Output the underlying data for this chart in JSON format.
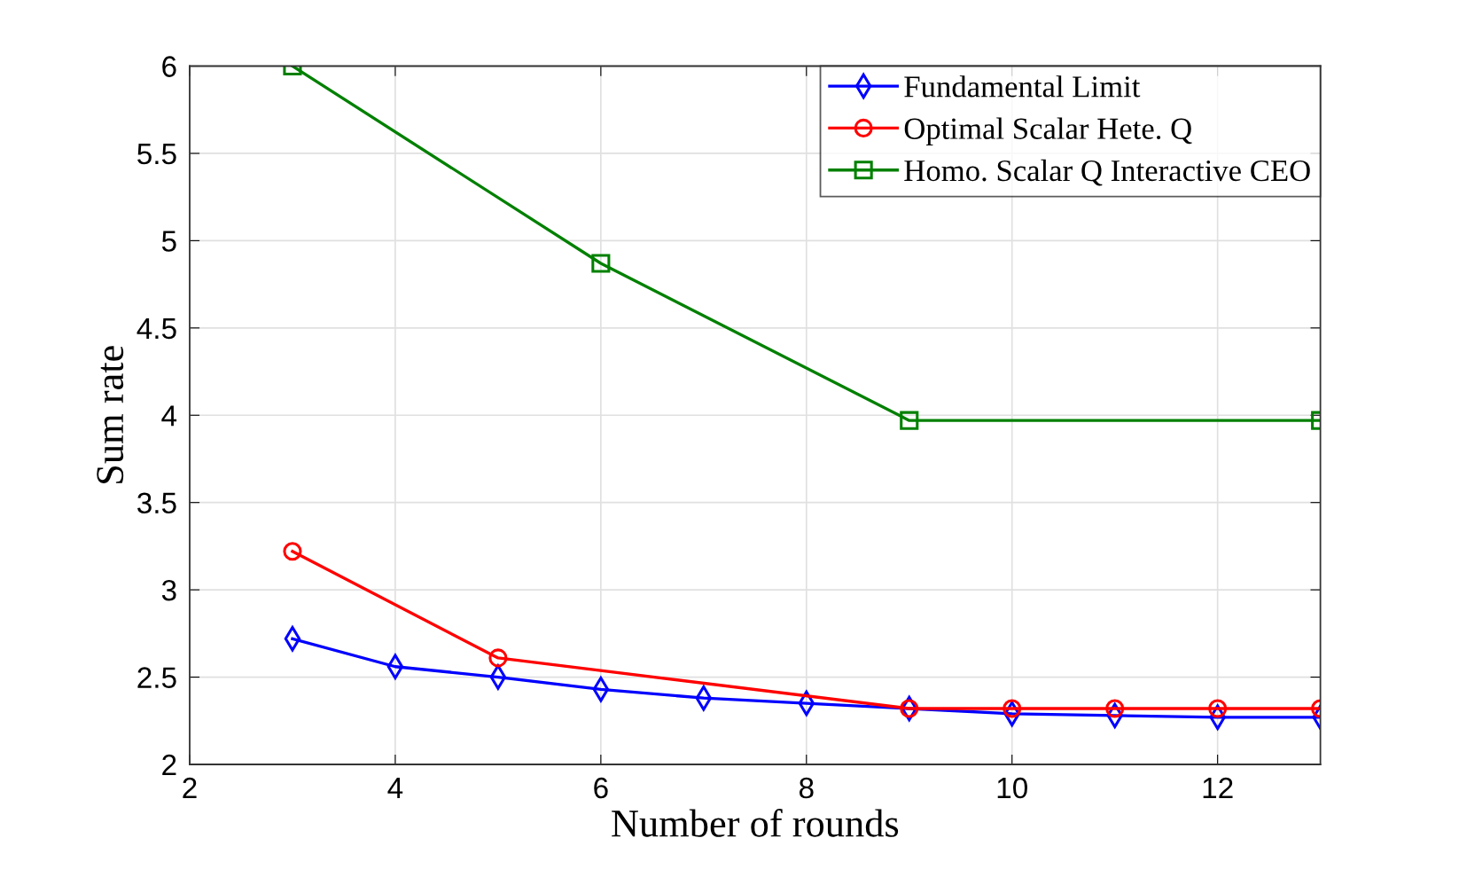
{
  "chart_data": {
    "type": "line",
    "xlabel": "Number of rounds",
    "ylabel": "Sum rate",
    "xlim": [
      2,
      13
    ],
    "xticks": [
      2,
      4,
      6,
      8,
      10,
      12
    ],
    "ylim": [
      2,
      6
    ],
    "yticks": [
      2,
      2.5,
      3,
      3.5,
      4,
      4.5,
      5,
      5.5,
      6
    ],
    "grid": true,
    "legend": "top right",
    "series": [
      {
        "name": "Fundamental Limit",
        "color": "#0000ff",
        "marker": "diamond",
        "x": [
          3,
          4,
          5,
          6,
          7,
          8,
          9,
          10,
          11,
          12,
          13
        ],
        "values": [
          2.72,
          2.56,
          2.5,
          2.43,
          2.38,
          2.35,
          2.32,
          2.29,
          2.28,
          2.27,
          2.27
        ]
      },
      {
        "name": "Optimal Scalar Hete. Q",
        "color": "#ff0000",
        "marker": "circle",
        "x": [
          3,
          5,
          9,
          10,
          11,
          12,
          13
        ],
        "values": [
          3.22,
          2.61,
          2.32,
          2.32,
          2.32,
          2.32,
          2.32
        ]
      },
      {
        "name": "Homo. Scalar Q Interactive CEO",
        "color": "#008000",
        "marker": "square",
        "x": [
          3,
          6,
          9,
          13
        ],
        "values": [
          6.0,
          4.87,
          3.97,
          3.97
        ]
      }
    ]
  }
}
